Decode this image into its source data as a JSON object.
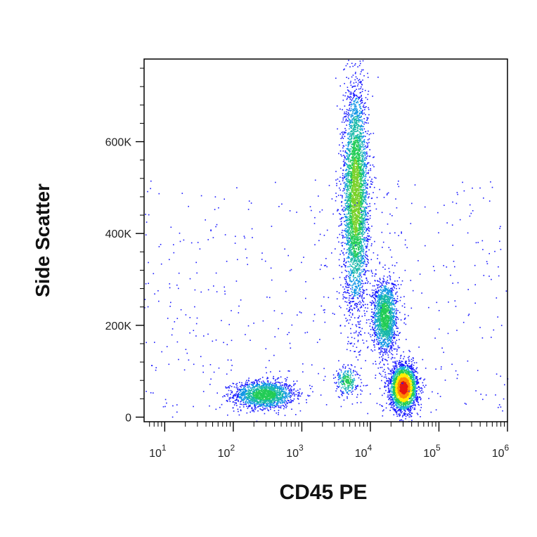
{
  "chart_data": {
    "type": "scatter",
    "title": "",
    "xlabel": "CD45 PE",
    "ylabel": "Side Scatter",
    "x_scale": "log",
    "xlim": [
      5,
      1000000
    ],
    "ylim": [
      -10000,
      780000
    ],
    "x_ticks": [
      {
        "value": 10,
        "base": "10",
        "exp": "1"
      },
      {
        "value": 100,
        "base": "10",
        "exp": "2"
      },
      {
        "value": 1000,
        "base": "10",
        "exp": "3"
      },
      {
        "value": 10000,
        "base": "10",
        "exp": "4"
      },
      {
        "value": 100000,
        "base": "10",
        "exp": "5"
      },
      {
        "value": 1000000,
        "base": "10",
        "exp": "6"
      }
    ],
    "y_ticks": [
      {
        "value": 0,
        "label": "0"
      },
      {
        "value": 200000,
        "label": "200K"
      },
      {
        "value": 400000,
        "label": "400K"
      },
      {
        "value": 600000,
        "label": "600K"
      }
    ],
    "grid": false,
    "legend": "none",
    "colors": {
      "low": "#1a1aff",
      "mid": "#22cc55",
      "high_mid": "#ffee00",
      "peak": "#e8170f"
    },
    "populations": [
      {
        "center_x": 280,
        "center_y": 50000,
        "spread_log_x": 0.22,
        "spread_y": 15000,
        "density": "medium"
      },
      {
        "center_x": 6000,
        "center_y": 480000,
        "spread_log_x": 0.09,
        "spread_y": 120000,
        "density": "medium-high"
      },
      {
        "center_x": 16000,
        "center_y": 220000,
        "spread_log_x": 0.09,
        "spread_y": 40000,
        "density": "medium"
      },
      {
        "center_x": 30000,
        "center_y": 65000,
        "spread_log_x": 0.1,
        "spread_y": 25000,
        "density": "peak"
      },
      {
        "center_x": 4500,
        "center_y": 80000,
        "spread_log_x": 0.08,
        "spread_y": 15000,
        "density": "low"
      }
    ]
  }
}
